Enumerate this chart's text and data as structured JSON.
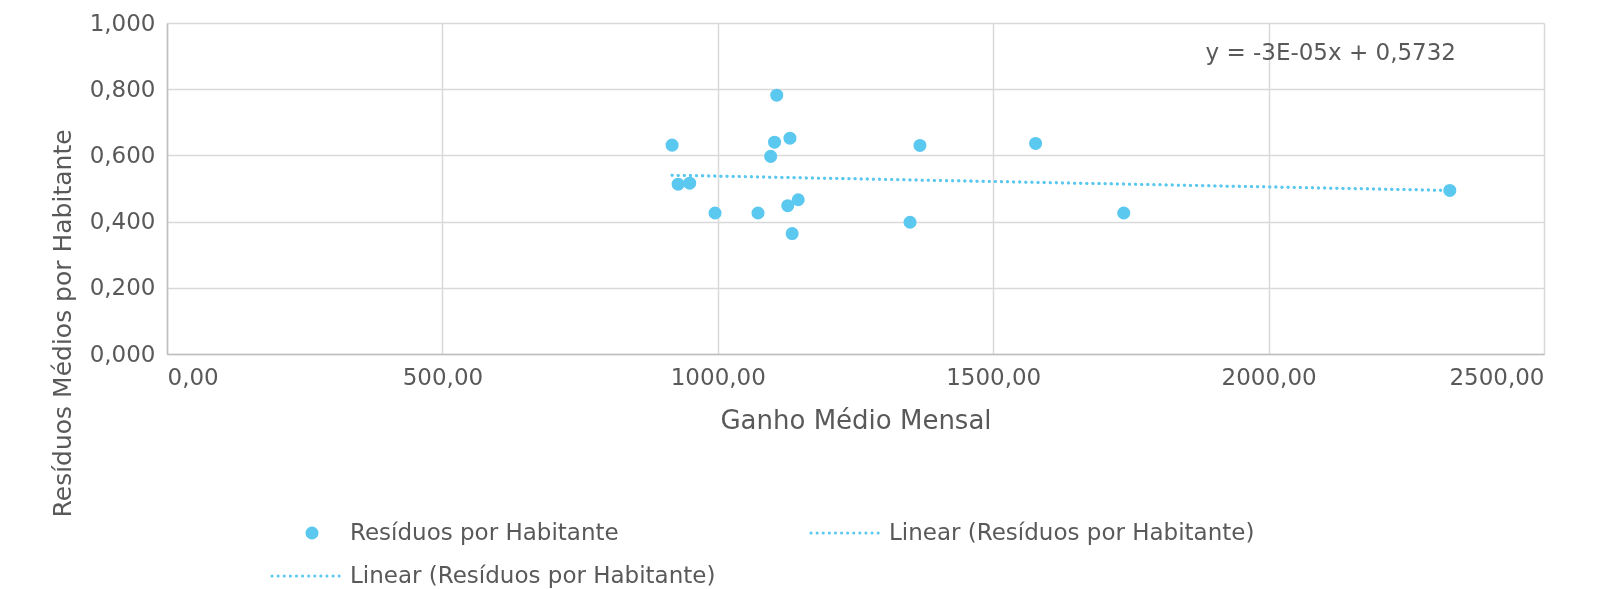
{
  "chart_data": {
    "type": "scatter",
    "xlabel": "Ganho Médio Mensal",
    "ylabel": "Resíduos Médios por Habitante",
    "xlim": [
      0,
      2500
    ],
    "ylim": [
      0,
      1
    ],
    "xticks": [
      {
        "value": 0,
        "label": "0,00"
      },
      {
        "value": 500,
        "label": "500,00"
      },
      {
        "value": 1000,
        "label": "1000,00"
      },
      {
        "value": 1500,
        "label": "1500,00"
      },
      {
        "value": 2000,
        "label": "2000,00"
      },
      {
        "value": 2500,
        "label": "2500,00"
      }
    ],
    "yticks": [
      {
        "value": 0,
        "label": "0,000"
      },
      {
        "value": 0.2,
        "label": "0,200"
      },
      {
        "value": 0.4,
        "label": "0,400"
      },
      {
        "value": 0.6,
        "label": "0,600"
      },
      {
        "value": 0.8,
        "label": "0,800"
      },
      {
        "value": 1,
        "label": "1,000"
      }
    ],
    "grid": true,
    "legend": "bottom",
    "series": [
      {
        "name": "Resíduos por Habitante",
        "marker": "circle",
        "color": "#5bc8ef",
        "x": [
          917,
          928,
          949,
          995,
          1096,
          1073,
          1107,
          1103,
          1131,
          1127,
          1146,
          1135,
          1349,
          1367,
          1577,
          1737,
          2329
        ],
        "values": [
          0.631,
          0.513,
          0.516,
          0.426,
          0.597,
          0.426,
          0.782,
          0.64,
          0.652,
          0.448,
          0.466,
          0.364,
          0.398,
          0.63,
          0.636,
          0.426,
          0.494
        ]
      },
      {
        "name": "Linear (Resíduos por Habitante)",
        "type": "line",
        "line_style": "dotted",
        "color": "#5bc8ef",
        "x": [
          917,
          2329
        ],
        "values": [
          0.54,
          0.494
        ]
      },
      {
        "name": "Linear (Resíduos por Habitante)",
        "type": "line",
        "line_style": "dotted",
        "color": "#5bc8ef",
        "x": [
          917,
          2329
        ],
        "values": [
          0.54,
          0.494
        ]
      }
    ],
    "annotations": [
      "y = -3E-05x + 0,5732"
    ]
  }
}
